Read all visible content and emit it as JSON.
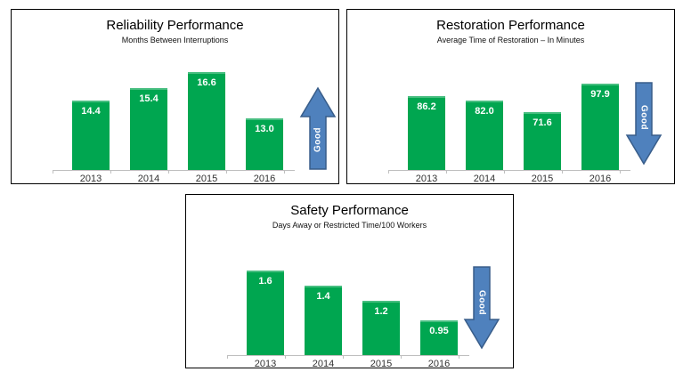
{
  "colors": {
    "bar_green": "#00A650",
    "arrow_blue_fill": "#4F81BD",
    "arrow_blue_border": "#385D8A",
    "axis_gray": "#BFBFBF",
    "value_label_white": "#FFFFFF",
    "title_black": "#000000",
    "year_label_gray": "#333333"
  },
  "chart_data": [
    {
      "type": "bar",
      "title": "Reliability Performance",
      "subtitle": "Months Between Interruptions",
      "categories": [
        "2013",
        "2014",
        "2015",
        "2016"
      ],
      "values": [
        14.4,
        15.4,
        16.6,
        13.0
      ],
      "value_labels": [
        "14.4",
        "15.4",
        "16.6",
        "13.0"
      ],
      "xlabel": "",
      "ylabel": "",
      "ylim": [
        9,
        18
      ],
      "grid": false,
      "legend": false,
      "good_direction": "up",
      "good_label": "Good"
    },
    {
      "type": "bar",
      "title": "Restoration Performance",
      "subtitle": "Average Time of Restoration – In Minutes",
      "categories": [
        "2013",
        "2014",
        "2015",
        "2016"
      ],
      "values": [
        86.2,
        82.0,
        71.6,
        97.9
      ],
      "value_labels": [
        "86.2",
        "82.0",
        "71.6",
        "97.9"
      ],
      "xlabel": "",
      "ylabel": "",
      "ylim": [
        20,
        124
      ],
      "grid": false,
      "legend": false,
      "good_direction": "down",
      "good_label": "Good"
    },
    {
      "type": "bar",
      "title": "Safety Performance",
      "subtitle": "Days Away or Restricted Time/100 Workers",
      "categories": [
        "2013",
        "2014",
        "2015",
        "2016"
      ],
      "values": [
        1.6,
        1.4,
        1.2,
        0.95
      ],
      "value_labels": [
        "1.6",
        "1.4",
        "1.2",
        "0.95"
      ],
      "xlabel": "",
      "ylabel": "",
      "ylim": [
        0.5,
        2.0
      ],
      "grid": false,
      "legend": false,
      "good_direction": "down",
      "good_label": "Good"
    }
  ]
}
